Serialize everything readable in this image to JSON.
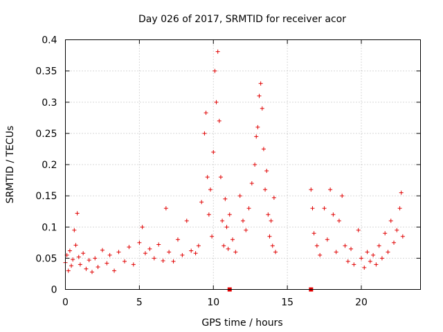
{
  "chart_data": {
    "type": "scatter",
    "title": "Day 026 of 2017, SRMTID for receiver acor",
    "xlabel": "GPS time / hours",
    "ylabel": "SRMTID / TECUs",
    "xlim": [
      0,
      24
    ],
    "ylim": [
      0,
      0.4
    ],
    "xticks": [
      0,
      5,
      10,
      15,
      20
    ],
    "xtick_labels": [
      "0",
      "5",
      "10",
      "15",
      "20"
    ],
    "yticks": [
      0,
      0.05,
      0.1,
      0.15,
      0.2,
      0.25,
      0.3,
      0.35,
      0.4
    ],
    "ytick_labels": [
      "0",
      "0.05",
      "0.1",
      "0.15",
      "0.2",
      "0.25",
      "0.3",
      "0.35",
      "0.4"
    ],
    "grid": true,
    "marker": "plus",
    "color": "#e00000",
    "series": [
      {
        "name": "SRMTID",
        "points": [
          [
            0.0,
            0.043
          ],
          [
            0.1,
            0.055
          ],
          [
            0.2,
            0.03
          ],
          [
            0.3,
            0.062
          ],
          [
            0.4,
            0.038
          ],
          [
            0.5,
            0.048
          ],
          [
            0.6,
            0.095
          ],
          [
            0.7,
            0.071
          ],
          [
            0.8,
            0.122
          ],
          [
            0.9,
            0.052
          ],
          [
            1.0,
            0.04
          ],
          [
            1.2,
            0.058
          ],
          [
            1.4,
            0.033
          ],
          [
            1.6,
            0.047
          ],
          [
            1.8,
            0.028
          ],
          [
            2.0,
            0.05
          ],
          [
            2.2,
            0.036
          ],
          [
            2.5,
            0.063
          ],
          [
            2.8,
            0.042
          ],
          [
            3.0,
            0.055
          ],
          [
            3.3,
            0.03
          ],
          [
            3.6,
            0.06
          ],
          [
            4.0,
            0.045
          ],
          [
            4.3,
            0.068
          ],
          [
            4.6,
            0.04
          ],
          [
            5.0,
            0.075
          ],
          [
            5.2,
            0.1
          ],
          [
            5.4,
            0.058
          ],
          [
            5.7,
            0.065
          ],
          [
            6.0,
            0.05
          ],
          [
            6.3,
            0.072
          ],
          [
            6.6,
            0.046
          ],
          [
            6.8,
            0.13
          ],
          [
            7.0,
            0.06
          ],
          [
            7.3,
            0.045
          ],
          [
            7.6,
            0.08
          ],
          [
            7.9,
            0.055
          ],
          [
            8.2,
            0.11
          ],
          [
            8.5,
            0.062
          ],
          [
            8.8,
            0.058
          ],
          [
            9.0,
            0.07
          ],
          [
            9.2,
            0.14
          ],
          [
            9.4,
            0.25
          ],
          [
            9.5,
            0.283
          ],
          [
            9.6,
            0.18
          ],
          [
            9.7,
            0.12
          ],
          [
            9.8,
            0.16
          ],
          [
            9.9,
            0.085
          ],
          [
            10.0,
            0.22
          ],
          [
            10.1,
            0.35
          ],
          [
            10.2,
            0.3
          ],
          [
            10.3,
            0.381
          ],
          [
            10.4,
            0.27
          ],
          [
            10.5,
            0.18
          ],
          [
            10.6,
            0.11
          ],
          [
            10.7,
            0.07
          ],
          [
            10.8,
            0.145
          ],
          [
            10.9,
            0.1
          ],
          [
            11.0,
            0.065
          ],
          [
            11.1,
            0.12
          ],
          [
            11.3,
            0.08
          ],
          [
            11.5,
            0.06
          ],
          [
            11.8,
            0.15
          ],
          [
            12.0,
            0.11
          ],
          [
            12.2,
            0.095
          ],
          [
            12.4,
            0.13
          ],
          [
            12.6,
            0.17
          ],
          [
            12.8,
            0.2
          ],
          [
            12.9,
            0.245
          ],
          [
            13.0,
            0.26
          ],
          [
            13.1,
            0.31
          ],
          [
            13.2,
            0.33
          ],
          [
            13.3,
            0.29
          ],
          [
            13.4,
            0.225
          ],
          [
            13.5,
            0.16
          ],
          [
            13.6,
            0.19
          ],
          [
            13.7,
            0.12
          ],
          [
            13.8,
            0.085
          ],
          [
            13.9,
            0.11
          ],
          [
            14.0,
            0.07
          ],
          [
            14.1,
            0.147
          ],
          [
            14.2,
            0.06
          ],
          [
            16.6,
            0.16
          ],
          [
            16.7,
            0.13
          ],
          [
            16.8,
            0.09
          ],
          [
            17.0,
            0.07
          ],
          [
            17.2,
            0.055
          ],
          [
            17.5,
            0.13
          ],
          [
            17.7,
            0.08
          ],
          [
            17.9,
            0.16
          ],
          [
            18.1,
            0.12
          ],
          [
            18.3,
            0.06
          ],
          [
            18.5,
            0.11
          ],
          [
            18.7,
            0.15
          ],
          [
            18.9,
            0.07
          ],
          [
            19.1,
            0.045
          ],
          [
            19.3,
            0.065
          ],
          [
            19.5,
            0.04
          ],
          [
            19.8,
            0.095
          ],
          [
            20.0,
            0.05
          ],
          [
            20.2,
            0.035
          ],
          [
            20.4,
            0.06
          ],
          [
            20.6,
            0.045
          ],
          [
            20.8,
            0.055
          ],
          [
            21.0,
            0.04
          ],
          [
            21.2,
            0.07
          ],
          [
            21.4,
            0.05
          ],
          [
            21.6,
            0.09
          ],
          [
            21.8,
            0.06
          ],
          [
            22.0,
            0.11
          ],
          [
            22.2,
            0.075
          ],
          [
            22.4,
            0.095
          ],
          [
            22.6,
            0.13
          ],
          [
            22.7,
            0.155
          ],
          [
            22.8,
            0.085
          ]
        ]
      }
    ],
    "gap_markers": [
      11.1,
      16.6
    ]
  }
}
